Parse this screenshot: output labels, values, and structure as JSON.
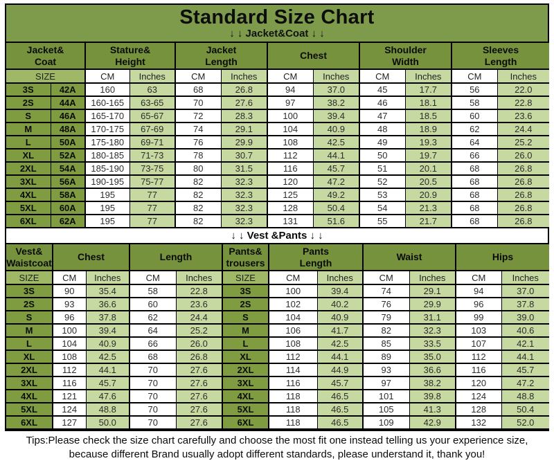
{
  "page": {
    "title": "Standard Size Chart",
    "jacket_section_label": "↓ ↓  Jacket&Coat ↓ ↓",
    "vest_section_label": "↓ ↓ Vest &Pants ↓ ↓",
    "tips_line1": "Tips:Please check the size chart carefully and choose the most fit one instead telling us your experience size,",
    "tips_line2": "because different Brand usually adopt different standards, please understand it, thank you!"
  },
  "colors": {
    "title_green": "#7d9b4a",
    "header_green": "#76923c",
    "size_cell_green": "#7f9c40",
    "size_header_green": "#9fb866",
    "light_green": "#c6d9a0",
    "cell_white": "#ffffff",
    "grid_black": "#000000"
  },
  "jacket_table": {
    "size_label": "SIZE",
    "unit_cm": "CM",
    "unit_inches": "Inches",
    "column_groups": [
      {
        "label": "Jacket&\nCoat"
      },
      {
        "label": "Stature&\nHeight"
      },
      {
        "label": "Jacket\nLength"
      },
      {
        "label": "Chest"
      },
      {
        "label": "Shoulder\nWidth"
      },
      {
        "label": "Sleeves\nLength"
      }
    ],
    "rows": [
      [
        "3S",
        "42A",
        "160",
        "63",
        "68",
        "26.8",
        "94",
        "37.0",
        "45",
        "17.7",
        "56",
        "22.0"
      ],
      [
        "2S",
        "44A",
        "160-165",
        "63-65",
        "70",
        "27.6",
        "97",
        "38.2",
        "46",
        "18.1",
        "58",
        "22.8"
      ],
      [
        "S",
        "46A",
        "165-170",
        "65-67",
        "72",
        "28.3",
        "100",
        "39.4",
        "47",
        "18.5",
        "60",
        "23.6"
      ],
      [
        "M",
        "48A",
        "170-175",
        "67-69",
        "74",
        "29.1",
        "104",
        "40.9",
        "48",
        "18.9",
        "62",
        "24.4"
      ],
      [
        "L",
        "50A",
        "175-180",
        "69-71",
        "76",
        "29.9",
        "108",
        "42.5",
        "49",
        "19.3",
        "64",
        "25.2"
      ],
      [
        "XL",
        "52A",
        "180-185",
        "71-73",
        "78",
        "30.7",
        "112",
        "44.1",
        "50",
        "19.7",
        "66",
        "26.0"
      ],
      [
        "2XL",
        "54A",
        "185-190",
        "73-75",
        "80",
        "31.5",
        "116",
        "45.7",
        "51",
        "20.1",
        "68",
        "26.8"
      ],
      [
        "3XL",
        "56A",
        "190-195",
        "75-77",
        "82",
        "32.3",
        "120",
        "47.2",
        "52",
        "20.5",
        "68",
        "26.8"
      ],
      [
        "4XL",
        "58A",
        "195",
        "77",
        "82",
        "32.3",
        "125",
        "49.2",
        "53",
        "20.9",
        "68",
        "26.8"
      ],
      [
        "5XL",
        "60A",
        "195",
        "77",
        "82",
        "32.3",
        "128",
        "50.4",
        "54",
        "21.3",
        "68",
        "26.8"
      ],
      [
        "6XL",
        "62A",
        "195",
        "77",
        "82",
        "32.3",
        "131",
        "51.6",
        "55",
        "21.7",
        "68",
        "26.8"
      ]
    ]
  },
  "vest_pants_table": {
    "size_label": "SIZE",
    "unit_cm": "CM",
    "unit_inches": "Inches",
    "column_groups": [
      {
        "label": "Vest&\nWaistcoat"
      },
      {
        "label": "Chest"
      },
      {
        "label": "Length"
      },
      {
        "label": "Pants&\ntrousers"
      },
      {
        "label": "Pants\nLength"
      },
      {
        "label": "Waist"
      },
      {
        "label": "Hips"
      }
    ],
    "rows": [
      [
        "3S",
        "90",
        "35.4",
        "58",
        "22.8",
        "3S",
        "100",
        "39.4",
        "74",
        "29.1",
        "94",
        "37.0"
      ],
      [
        "2S",
        "93",
        "36.6",
        "60",
        "23.6",
        "2S",
        "102",
        "40.2",
        "76",
        "29.9",
        "96",
        "37.8"
      ],
      [
        "S",
        "96",
        "37.8",
        "62",
        "24.4",
        "S",
        "104",
        "40.9",
        "79",
        "31.1",
        "99",
        "39.0"
      ],
      [
        "M",
        "100",
        "39.4",
        "64",
        "25.2",
        "M",
        "106",
        "41.7",
        "82",
        "32.3",
        "103",
        "40.6"
      ],
      [
        "L",
        "104",
        "40.9",
        "66",
        "26.0",
        "L",
        "108",
        "42.5",
        "85",
        "33.5",
        "107",
        "42.1"
      ],
      [
        "XL",
        "108",
        "42.5",
        "68",
        "26.8",
        "XL",
        "112",
        "44.1",
        "89",
        "35.0",
        "112",
        "44.1"
      ],
      [
        "2XL",
        "112",
        "44.1",
        "70",
        "27.6",
        "2XL",
        "114",
        "44.9",
        "93",
        "36.6",
        "116",
        "45.7"
      ],
      [
        "3XL",
        "116",
        "45.7",
        "70",
        "27.6",
        "3XL",
        "116",
        "45.7",
        "97",
        "38.2",
        "120",
        "47.2"
      ],
      [
        "4XL",
        "121",
        "47.6",
        "70",
        "27.6",
        "4XL",
        "118",
        "46.5",
        "101",
        "39.8",
        "124",
        "48.8"
      ],
      [
        "5XL",
        "124",
        "48.8",
        "70",
        "27.6",
        "5XL",
        "118",
        "46.5",
        "105",
        "41.3",
        "128",
        "50.4"
      ],
      [
        "6XL",
        "127",
        "50.0",
        "70",
        "27.6",
        "6XL",
        "118",
        "46.5",
        "109",
        "42.9",
        "132",
        "52.0"
      ]
    ]
  }
}
